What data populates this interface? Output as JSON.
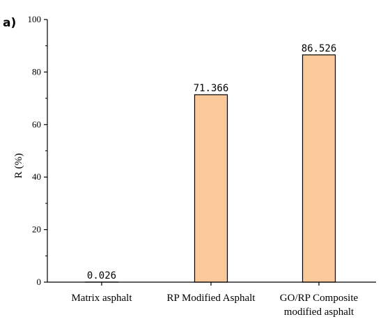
{
  "panel_label": "a)",
  "chart_data": {
    "type": "bar",
    "categories": [
      "Matrix asphalt",
      "RP Modified Asphalt",
      "GO/RP Composite modified asphalt"
    ],
    "category_lines": [
      [
        "Matrix asphalt"
      ],
      [
        "RP Modified Asphalt"
      ],
      [
        "GO/RP Composite",
        "modified asphalt"
      ]
    ],
    "values": [
      0.026,
      71.366,
      86.526
    ],
    "value_labels": [
      "0.026",
      "71.366",
      "86.526"
    ],
    "ylabel": "R (%)",
    "ylim": [
      0,
      100
    ],
    "yticks": [
      0,
      20,
      40,
      60,
      80,
      100
    ],
    "bar_color": "#fbc999",
    "bar_edge_color": "#000000",
    "grid": false
  }
}
